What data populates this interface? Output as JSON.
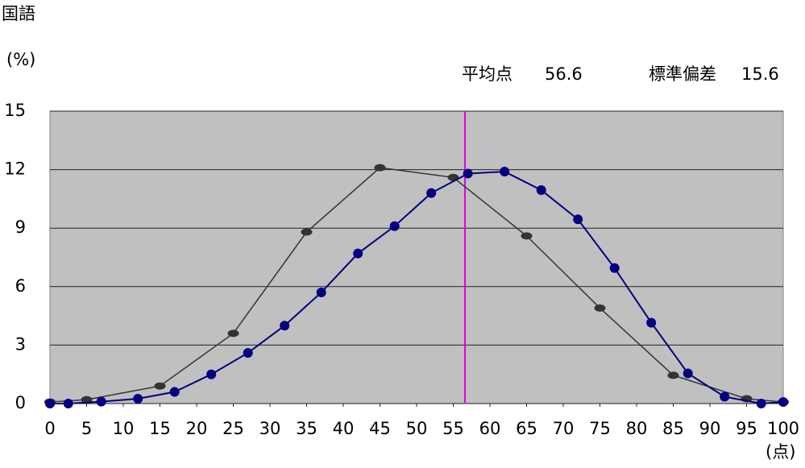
{
  "chart_data": {
    "type": "line",
    "title": "国語",
    "y_label": "(%)",
    "x_label": "(点)",
    "mean_label": "平均点",
    "mean": 56.6,
    "sd_label": "標準偏差",
    "sd": 15.6,
    "mean_line_color": "#e000e0",
    "xlim": [
      0,
      100
    ],
    "xticks": [
      0,
      5,
      10,
      15,
      20,
      25,
      30,
      35,
      40,
      45,
      50,
      55,
      60,
      65,
      70,
      75,
      80,
      85,
      90,
      95,
      100
    ],
    "ylim": [
      0,
      15
    ],
    "yticks": [
      0,
      3,
      6,
      9,
      12,
      15
    ],
    "grid": true,
    "series": [
      {
        "color": "#333333",
        "marker": "ellipse",
        "x": [
          0,
          5,
          15,
          25,
          35,
          45,
          55,
          65,
          75,
          85,
          95,
          100
        ],
        "values": [
          0.08,
          0.2,
          0.9,
          3.6,
          8.8,
          12.1,
          11.6,
          8.6,
          4.9,
          1.45,
          0.25,
          0.08
        ]
      },
      {
        "color": "#000080",
        "marker": "circle",
        "x": [
          0,
          2.5,
          7,
          12,
          17,
          22,
          27,
          32,
          37,
          42,
          47,
          52,
          57,
          62,
          67,
          72,
          77,
          82,
          87,
          92,
          97,
          100
        ],
        "values": [
          0,
          0,
          0.1,
          0.25,
          0.6,
          1.5,
          2.6,
          4.0,
          5.7,
          7.7,
          9.1,
          10.8,
          11.8,
          11.9,
          10.95,
          9.45,
          6.95,
          4.15,
          1.55,
          0.35,
          0,
          0.08
        ]
      }
    ]
  }
}
